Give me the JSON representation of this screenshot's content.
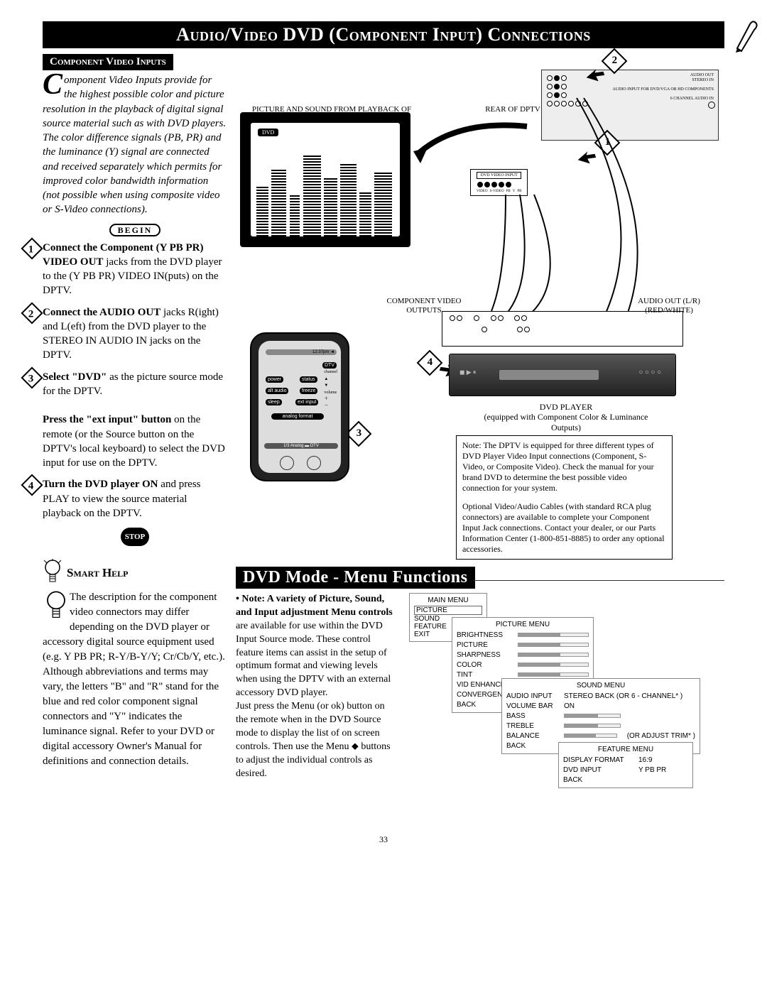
{
  "title": "Audio/Video DVD (Component Input) Connections",
  "subheader": "Component Video Inputs",
  "intro": {
    "dropcap": "C",
    "text": "omponent Video Inputs provide for the highest possible color and picture resolution in the playback of digital signal source material such as with DVD players. The color difference signals (PB, PR) and the luminance (Y) signal are connected and received separately which permits for improved color bandwidth information (not possible when using composite video or S-Video connections)."
  },
  "begin_label": "BEGIN",
  "steps": [
    {
      "n": "1",
      "bold": "Connect the Component (Y PB PR) VIDEO OUT",
      "rest": " jacks from the DVD player to the (Y PB PR) VIDEO IN(puts) on the DPTV."
    },
    {
      "n": "2",
      "bold": "Connect the AUDIO OUT",
      "rest": " jacks R(ight) and L(eft) from the DVD player to the STEREO IN AUDIO IN jacks on the DPTV."
    },
    {
      "n": "3",
      "bold": "Select \"DVD\"",
      "rest": " as the picture source mode for the DPTV.",
      "extra_bold": "Press the \"ext input\" button",
      "extra_rest": " on the remote (or the Source button on the DPTV's local keyboard) to select the DVD input for use on the DPTV."
    },
    {
      "n": "4",
      "bold": "Turn the DVD player ON",
      "rest": " and press PLAY to view the source material playback on the DPTV."
    }
  ],
  "stop_label": "STOP",
  "smart_help_title": "Smart Help",
  "smart_help_body": "The description for the component video connectors may differ depending on the DVD player or accessory digital source equipment used (e.g. Y PB PR; R-Y/B-Y/Y; Cr/Cb/Y, etc.). Although abbreviations and  terms may vary, the letters \"B\" and  \"R\" stand for the blue and red color component signal connectors and \"Y\" indicates the luminance signal. Refer to your DVD or digital accessory Owner's Manual for definitions and connection details.",
  "section2_title": "DVD Mode - Menu Functions",
  "note_col_bold": "•  Note: A variety of Picture, Sound, and Input adjustment Menu controls",
  "note_col_rest": " are available for use within the DVD Input Source mode. These control feature items can assist in the setup of optimum format and viewing levels when using the DPTV with an external accessory DVD player.\nJust press the Menu (or ok) button on the remote when in the  DVD Source mode to display the list of on screen controls. Then use the Menu ⬥ buttons to adjust the individual controls as desired.",
  "diagram": {
    "top_caption": "PICTURE AND SOUND FROM PLAYBACK OF DVD SOURCE MATERIAL",
    "rear_label": "REAR OF DPTV",
    "dvd_badge": "DVD",
    "video_input_label": "DVD VIDEO INPUT",
    "component_out": "COMPONENT VIDEO OUTPUTS",
    "audio_out": "AUDIO OUT (L/R) (RED/WHITE)",
    "dvd_player_label": "DVD PLAYER",
    "dvd_player_sub": "(equipped with Component Color & Luminance Outputs)",
    "panel_labels": [
      "AUDIO OUT",
      "STEREO IN",
      "AUDIO INPUT FOR DVD/VGA OR HD COMPONENTS",
      "6 CHANNEL AUDIO IN",
      "VIDEO",
      "S-VIDEO",
      "PB",
      "Y",
      "PR"
    ],
    "remote_buttons": [
      "power",
      "status",
      "alt audio",
      "freeze",
      "sleep",
      "ext input",
      "analog format",
      "DTV"
    ],
    "remote_bottom": "1/3    Analog ▬ DTV"
  },
  "notes": {
    "box1": "Note: The DPTV is equipped for three different types of DVD Player Video Input connections (Component, S-Video, or Composite Video). Check the manual for your brand DVD to determine the best possible video connection for your system.",
    "box2": "Optional Video/Audio Cables (with standard RCA plug connectors) are available to complete your Component Input Jack connections. Contact your dealer, or our Parts Information Center (1-800-851-8885) to order any optional accessories."
  },
  "menus": {
    "main": {
      "title": "MAIN MENU",
      "items": [
        "PICTURE",
        "SOUND",
        "FEATURE",
        "EXIT"
      ]
    },
    "picture": {
      "title": "PICTURE MENU",
      "items": [
        "BRIGHTNESS",
        "PICTURE",
        "SHARPNESS",
        "COLOR",
        "TINT",
        "VID ENHANCE",
        "CONVERGENCE",
        "BACK"
      ]
    },
    "sound": {
      "title": "SOUND MENU",
      "items": [
        "AUDIO INPUT",
        "VOLUME BAR",
        "BASS",
        "TREBLE",
        "BALANCE",
        "BACK"
      ],
      "right": [
        "STEREO BACK  (OR 6 - CHANNEL* )",
        "ON",
        "",
        "",
        "(OR ADJUST TRIM* )",
        ""
      ]
    },
    "feature": {
      "title": "FEATURE MENU",
      "items": [
        "DISPLAY FORMAT",
        "DVD INPUT",
        "BACK"
      ],
      "right": [
        "16:9",
        "Y PB PR",
        ""
      ]
    }
  },
  "page": "33"
}
